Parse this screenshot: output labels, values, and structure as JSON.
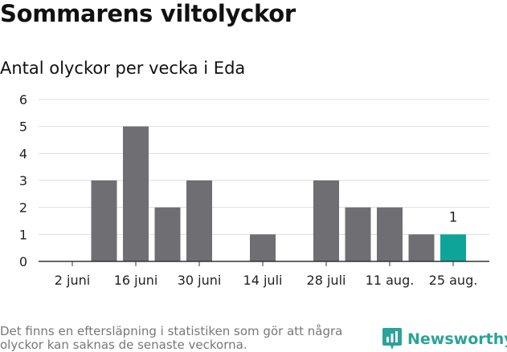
{
  "header": {
    "title": "Sommarens viltolyckor",
    "subtitle": "Antal olyckor per vecka i Eda"
  },
  "chart_data": {
    "type": "bar",
    "title": "Sommarens viltolyckor",
    "subtitle": "Antal olyckor per vecka i Eda",
    "x_tick_labels": [
      "2 juni",
      "16 juni",
      "30 juni",
      "14 juli",
      "28 juli",
      "11 aug.",
      "25 aug."
    ],
    "categories": [
      "2 juni",
      "9 juni",
      "16 juni",
      "23 juni",
      "30 juni",
      "7 juli",
      "14 juli",
      "21 juli",
      "28 juli",
      "4 aug.",
      "11 aug.",
      "18 aug.",
      "25 aug."
    ],
    "values": [
      0,
      3,
      5,
      2,
      3,
      0,
      1,
      0,
      3,
      2,
      2,
      1,
      1
    ],
    "highlight_index": 12,
    "highlight_label": "1",
    "ylim": [
      0,
      6
    ],
    "yticks": [
      0,
      1,
      2,
      3,
      4,
      5,
      6
    ],
    "grid": true,
    "colors": {
      "bar": "#6f6e72",
      "highlight": "#0fa49a",
      "grid": "#dddddd",
      "axis": "#333333"
    }
  },
  "footer": {
    "note": "Det finns en eftersläpning i statistiken som gör att några olyckor kan saknas de senaste veckorna.",
    "brand": "Newsworthy",
    "brand_icon": "bar-chart-logo-icon",
    "brand_color": "#2aa39a"
  }
}
